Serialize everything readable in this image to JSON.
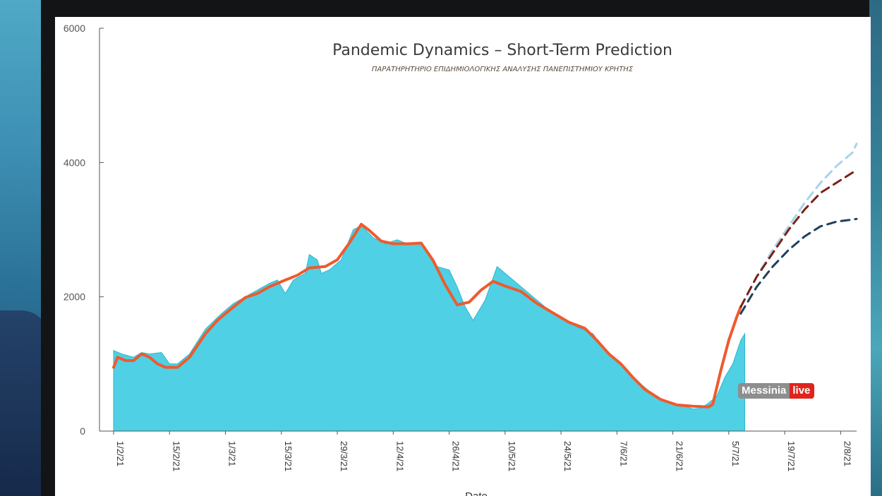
{
  "watermark": {
    "brand": "Messinia",
    "badge": "live",
    "badge_color": "#e0241c"
  },
  "chart_data": {
    "type": "area",
    "title": "Pandemic Dynamics – Short-Term Prediction",
    "subtitle": "ΠΑΡΑΤΗΡΗΤΗΡΙΟ ΕΠΙΔΗΜΙΟΛΟΓΙΚΗΣ ΑΝΑΛΥΣΗΣ ΠΑΝΕΠΙΣΤΗΜΙΟΥ ΚΡΗΤΗΣ",
    "xlabel": "Date",
    "ylabel": "",
    "ylim": [
      0,
      6000
    ],
    "x_range": [
      "2021-02-01",
      "2021-08-06"
    ],
    "yticks": [
      0,
      2000,
      4000,
      6000
    ],
    "ytick_labels": [
      "0",
      "2000",
      "4000",
      "6000"
    ],
    "xticks": [
      "2021-02-01",
      "2021-02-15",
      "2021-03-01",
      "2021-03-15",
      "2021-03-29",
      "2021-04-12",
      "2021-04-26",
      "2021-05-10",
      "2021-05-24",
      "2021-06-07",
      "2021-06-21",
      "2021-07-05",
      "2021-07-19",
      "2021-08-02"
    ],
    "xtick_labels": [
      "1/2/21",
      "15/2/21",
      "1/3/21",
      "15/3/21",
      "29/3/21",
      "12/4/21",
      "26/4/21",
      "10/5/21",
      "24/5/21",
      "7/6/21",
      "21/6/21",
      "5/7/21",
      "19/7/21",
      "2/8/21"
    ],
    "grid": false,
    "series": [
      {
        "style": "area",
        "color": "#4fd0e4",
        "points": [
          [
            "2021-02-01",
            1200
          ],
          [
            "2021-02-03",
            1150
          ],
          [
            "2021-02-06",
            1100
          ],
          [
            "2021-02-08",
            1170
          ],
          [
            "2021-02-10",
            1150
          ],
          [
            "2021-02-13",
            1170
          ],
          [
            "2021-02-15",
            1000
          ],
          [
            "2021-02-17",
            1000
          ],
          [
            "2021-02-20",
            1150
          ],
          [
            "2021-02-24",
            1520
          ],
          [
            "2021-02-28",
            1750
          ],
          [
            "2021-03-03",
            1900
          ],
          [
            "2021-03-06",
            2000
          ],
          [
            "2021-03-09",
            2100
          ],
          [
            "2021-03-12",
            2200
          ],
          [
            "2021-03-14",
            2250
          ],
          [
            "2021-03-16",
            2050
          ],
          [
            "2021-03-18",
            2250
          ],
          [
            "2021-03-21",
            2350
          ],
          [
            "2021-03-22",
            2630
          ],
          [
            "2021-03-24",
            2550
          ],
          [
            "2021-03-25",
            2350
          ],
          [
            "2021-03-27",
            2400
          ],
          [
            "2021-03-30",
            2550
          ],
          [
            "2021-04-02",
            3000
          ],
          [
            "2021-04-04",
            3060
          ],
          [
            "2021-04-07",
            2880
          ],
          [
            "2021-04-10",
            2790
          ],
          [
            "2021-04-13",
            2850
          ],
          [
            "2021-04-15",
            2800
          ],
          [
            "2021-04-19",
            2800
          ],
          [
            "2021-04-21",
            2600
          ],
          [
            "2021-04-23",
            2450
          ],
          [
            "2021-04-26",
            2400
          ],
          [
            "2021-04-28",
            2150
          ],
          [
            "2021-04-30",
            1850
          ],
          [
            "2021-05-02",
            1650
          ],
          [
            "2021-05-05",
            1950
          ],
          [
            "2021-05-08",
            2450
          ],
          [
            "2021-05-11",
            2300
          ],
          [
            "2021-05-14",
            2150
          ],
          [
            "2021-05-17",
            2000
          ],
          [
            "2021-05-20",
            1850
          ],
          [
            "2021-05-24",
            1700
          ],
          [
            "2021-05-28",
            1550
          ],
          [
            "2021-06-01",
            1450
          ],
          [
            "2021-06-04",
            1200
          ],
          [
            "2021-06-07",
            1050
          ],
          [
            "2021-06-10",
            850
          ],
          [
            "2021-06-14",
            650
          ],
          [
            "2021-06-17",
            500
          ],
          [
            "2021-06-21",
            420
          ],
          [
            "2021-06-24",
            370
          ],
          [
            "2021-06-26",
            330
          ],
          [
            "2021-06-28",
            340
          ],
          [
            "2021-06-30",
            420
          ],
          [
            "2021-07-02",
            520
          ],
          [
            "2021-07-04",
            800
          ],
          [
            "2021-07-06",
            1000
          ],
          [
            "2021-07-08",
            1350
          ],
          [
            "2021-07-09",
            1450
          ]
        ]
      },
      {
        "style": "line",
        "color": "#ef5a2d",
        "points": [
          [
            "2021-02-01",
            950
          ],
          [
            "2021-02-02",
            1100
          ],
          [
            "2021-02-04",
            1050
          ],
          [
            "2021-02-06",
            1050
          ],
          [
            "2021-02-08",
            1150
          ],
          [
            "2021-02-10",
            1100
          ],
          [
            "2021-02-12",
            1000
          ],
          [
            "2021-02-14",
            950
          ],
          [
            "2021-02-17",
            950
          ],
          [
            "2021-02-20",
            1100
          ],
          [
            "2021-02-24",
            1450
          ],
          [
            "2021-02-27",
            1650
          ],
          [
            "2021-03-02",
            1800
          ],
          [
            "2021-03-06",
            1990
          ],
          [
            "2021-03-09",
            2050
          ],
          [
            "2021-03-12",
            2150
          ],
          [
            "2021-03-16",
            2250
          ],
          [
            "2021-03-19",
            2320
          ],
          [
            "2021-03-22",
            2430
          ],
          [
            "2021-03-26",
            2450
          ],
          [
            "2021-03-29",
            2550
          ],
          [
            "2021-04-01",
            2800
          ],
          [
            "2021-04-04",
            3080
          ],
          [
            "2021-04-06",
            2990
          ],
          [
            "2021-04-09",
            2830
          ],
          [
            "2021-04-12",
            2790
          ],
          [
            "2021-04-16",
            2790
          ],
          [
            "2021-04-19",
            2800
          ],
          [
            "2021-04-22",
            2540
          ],
          [
            "2021-04-25",
            2180
          ],
          [
            "2021-04-28",
            1880
          ],
          [
            "2021-05-01",
            1920
          ],
          [
            "2021-05-04",
            2100
          ],
          [
            "2021-05-07",
            2230
          ],
          [
            "2021-05-10",
            2160
          ],
          [
            "2021-05-14",
            2080
          ],
          [
            "2021-05-18",
            1900
          ],
          [
            "2021-05-22",
            1760
          ],
          [
            "2021-05-26",
            1620
          ],
          [
            "2021-05-30",
            1530
          ],
          [
            "2021-06-02",
            1350
          ],
          [
            "2021-06-05",
            1150
          ],
          [
            "2021-06-08",
            1000
          ],
          [
            "2021-06-11",
            800
          ],
          [
            "2021-06-14",
            620
          ],
          [
            "2021-06-18",
            470
          ],
          [
            "2021-06-22",
            390
          ],
          [
            "2021-06-26",
            370
          ],
          [
            "2021-06-30",
            360
          ],
          [
            "2021-07-01",
            400
          ],
          [
            "2021-07-03",
            900
          ],
          [
            "2021-07-05",
            1350
          ],
          [
            "2021-07-07",
            1700
          ],
          [
            "2021-07-08",
            1850
          ]
        ]
      },
      {
        "style": "dash",
        "color": "#a9d2ea",
        "points": [
          [
            "2021-07-08",
            1850
          ],
          [
            "2021-07-12",
            2300
          ],
          [
            "2021-07-16",
            2700
          ],
          [
            "2021-07-20",
            3050
          ],
          [
            "2021-07-24",
            3400
          ],
          [
            "2021-07-28",
            3700
          ],
          [
            "2021-08-01",
            3950
          ],
          [
            "2021-08-05",
            4150
          ],
          [
            "2021-08-06",
            4280
          ]
        ]
      },
      {
        "style": "dash",
        "color": "#7a2212",
        "points": [
          [
            "2021-07-08",
            1850
          ],
          [
            "2021-07-12",
            2300
          ],
          [
            "2021-07-16",
            2650
          ],
          [
            "2021-07-20",
            3000
          ],
          [
            "2021-07-24",
            3300
          ],
          [
            "2021-07-28",
            3550
          ],
          [
            "2021-08-01",
            3700
          ],
          [
            "2021-08-05",
            3850
          ],
          [
            "2021-08-06",
            3900
          ]
        ]
      },
      {
        "style": "dash",
        "color": "#1f3f5e",
        "points": [
          [
            "2021-07-08",
            1750
          ],
          [
            "2021-07-12",
            2150
          ],
          [
            "2021-07-16",
            2450
          ],
          [
            "2021-07-20",
            2700
          ],
          [
            "2021-07-24",
            2900
          ],
          [
            "2021-07-28",
            3050
          ],
          [
            "2021-08-01",
            3120
          ],
          [
            "2021-08-05",
            3150
          ],
          [
            "2021-08-06",
            3160
          ]
        ]
      }
    ]
  }
}
